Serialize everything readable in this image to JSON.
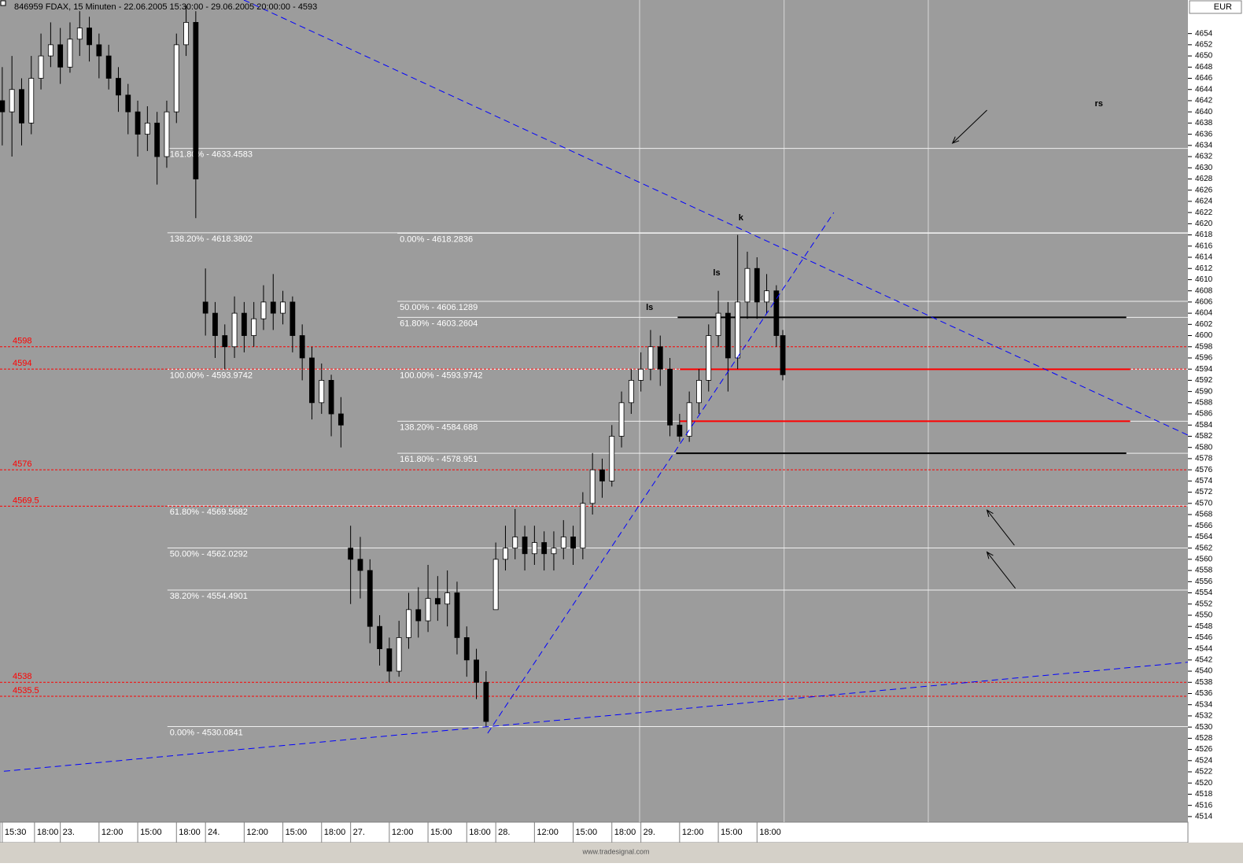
{
  "chart_data": {
    "type": "candlestick",
    "title": "846959  FDAX, 15 Minuten - 22.06.2005 15:30:00 - 29.06.2005 20:00:00 - 4593",
    "currency": "EUR",
    "footer": "www.tradesignal.com",
    "up_color": "#ffffff",
    "down_color": "#000000",
    "x": [
      0,
      3,
      6,
      9,
      12,
      15,
      18,
      21,
      24,
      27,
      30,
      33,
      36,
      39,
      42,
      45,
      48,
      51,
      54,
      57,
      60,
      63,
      66,
      69,
      72,
      75,
      78,
      81,
      84,
      87,
      90,
      93,
      96,
      99,
      102,
      105,
      108,
      111,
      114,
      117,
      120,
      123,
      126,
      129,
      132,
      135,
      138,
      141,
      144,
      147,
      150,
      153,
      156,
      159,
      162,
      165,
      168,
      171,
      174,
      177,
      180,
      183,
      186,
      189,
      192,
      195,
      198,
      201,
      204,
      207,
      210,
      213,
      216,
      219,
      222,
      225,
      228,
      231,
      234,
      237,
      240,
      242
    ],
    "open": [
      4642,
      4640,
      4644,
      4638,
      4646,
      4650,
      4652,
      4648,
      4653,
      4655,
      4652,
      4650,
      4646,
      4643,
      4640,
      4636,
      4638,
      4632,
      4640,
      4652,
      4656,
      4606,
      4604,
      4600,
      4598,
      4604,
      4600,
      4603,
      4606,
      4604,
      4606,
      4600,
      4596,
      4588,
      4592,
      4586,
      4562,
      4560,
      4558,
      4548,
      4544,
      4540,
      4546,
      4551,
      4549,
      4553,
      4552,
      4554,
      4546,
      4542,
      4538,
      4551,
      4560,
      4562,
      4564,
      4561,
      4563,
      4561,
      4562,
      4564,
      4562,
      4570,
      4576,
      4574,
      4582,
      4588,
      4592,
      4594,
      4598,
      4594,
      4584,
      4582,
      4588,
      4592,
      4600,
      4604,
      4596,
      4606,
      4612,
      4606,
      4608,
      4600
    ],
    "high": [
      4648,
      4650,
      4646,
      4650,
      4654,
      4656,
      4655,
      4656,
      4658,
      4657,
      4654,
      4652,
      4648,
      4645,
      4642,
      4641,
      4640,
      4642,
      4654,
      4659,
      4658,
      4612,
      4606,
      4602,
      4607,
      4606,
      4606,
      4609,
      4611,
      4608,
      4607,
      4602,
      4598,
      4595,
      4593,
      4589,
      4566,
      4564,
      4560,
      4550,
      4546,
      4549,
      4554,
      4555,
      4559,
      4557,
      4558,
      4556,
      4548,
      4544,
      4540,
      4563,
      4566,
      4569,
      4566,
      4566,
      4565,
      4565,
      4567,
      4566,
      4572,
      4579,
      4578,
      4584,
      4590,
      4594,
      4597,
      4601,
      4600,
      4596,
      4586,
      4590,
      4594,
      4602,
      4608,
      4606,
      4618,
      4615,
      4614,
      4611,
      4609,
      4601
    ],
    "low": [
      4634,
      4632,
      4634,
      4636,
      4644,
      4648,
      4645,
      4647,
      4650,
      4649,
      4646,
      4644,
      4640,
      4636,
      4632,
      4633,
      4627,
      4630,
      4638,
      4650,
      4621,
      4600,
      4596,
      4594,
      4596,
      4597,
      4598,
      4601,
      4601,
      4602,
      4597,
      4592,
      4585,
      4586,
      4582,
      4580,
      4552,
      4553,
      4545,
      4541,
      4538,
      4539,
      4544,
      4546,
      4547,
      4549,
      4548,
      4543,
      4539,
      4535,
      4530,
      4551,
      4558,
      4560,
      4558,
      4559,
      4558,
      4558,
      4560,
      4559,
      4560,
      4568,
      4571,
      4573,
      4580,
      4586,
      4590,
      4592,
      4591,
      4582,
      4581,
      4581,
      4586,
      4590,
      4598,
      4590,
      4594,
      4603,
      4603,
      4604,
      4598,
      4592
    ],
    "close": [
      4640,
      4644,
      4638,
      4646,
      4650,
      4652,
      4648,
      4653,
      4655,
      4652,
      4650,
      4646,
      4643,
      4640,
      4636,
      4638,
      4632,
      4640,
      4652,
      4656,
      4628,
      4604,
      4600,
      4598,
      4604,
      4600,
      4603,
      4606,
      4604,
      4606,
      4600,
      4596,
      4588,
      4592,
      4586,
      4584,
      4560,
      4558,
      4548,
      4544,
      4540,
      4546,
      4551,
      4549,
      4553,
      4552,
      4554,
      4546,
      4542,
      4538,
      4531,
      4560,
      4562,
      4564,
      4561,
      4563,
      4561,
      4562,
      4564,
      4562,
      4570,
      4576,
      4574,
      4582,
      4588,
      4592,
      4594,
      4598,
      4594,
      4584,
      4582,
      4588,
      4592,
      4600,
      4604,
      4596,
      4606,
      4612,
      4606,
      4608,
      4600,
      4593
    ],
    "xlim": [
      -0.7,
      367.6
    ],
    "ylim": [
      4513,
      4660
    ],
    "yticks": [
      4514,
      4516,
      4518,
      4520,
      4522,
      4524,
      4526,
      4528,
      4530,
      4532,
      4534,
      4536,
      4538,
      4540,
      4542,
      4544,
      4546,
      4548,
      4550,
      4552,
      4554,
      4556,
      4558,
      4560,
      4562,
      4564,
      4566,
      4568,
      4570,
      4572,
      4574,
      4576,
      4578,
      4580,
      4582,
      4584,
      4586,
      4588,
      4590,
      4592,
      4594,
      4596,
      4598,
      4600,
      4602,
      4604,
      4606,
      4608,
      4610,
      4612,
      4614,
      4616,
      4618,
      4620,
      4622,
      4624,
      4626,
      4628,
      4630,
      4632,
      4634,
      4636,
      4638,
      4640,
      4642,
      4644,
      4646,
      4648,
      4650,
      4652,
      4654
    ],
    "xticks": [
      {
        "value": 0,
        "label": "15:30"
      },
      {
        "value": 10,
        "label": "18:00"
      },
      {
        "value": 18,
        "label": "23."
      },
      {
        "value": 30,
        "label": "12:00"
      },
      {
        "value": 42,
        "label": "15:00"
      },
      {
        "value": 54,
        "label": "18:00"
      },
      {
        "value": 63,
        "label": "24."
      },
      {
        "value": 75,
        "label": "12:00"
      },
      {
        "value": 87,
        "label": "15:00"
      },
      {
        "value": 99,
        "label": "18:00"
      },
      {
        "value": 108,
        "label": "27."
      },
      {
        "value": 120,
        "label": "12:00"
      },
      {
        "value": 132,
        "label": "15:00"
      },
      {
        "value": 144,
        "label": "18:00"
      },
      {
        "value": 153,
        "label": "28."
      },
      {
        "value": 165,
        "label": "12:00"
      },
      {
        "value": 177,
        "label": "15:00"
      },
      {
        "value": 189,
        "label": "18:00"
      },
      {
        "value": 198,
        "label": "29."
      },
      {
        "value": 210,
        "label": "12:00"
      },
      {
        "value": 222,
        "label": "15:00"
      },
      {
        "value": 234,
        "label": "18:00"
      }
    ],
    "fib_levels": [
      {
        "value": 4633.4583,
        "label": "161.80% - 4633.4583",
        "start": 51.2
      },
      {
        "value": 4618.3802,
        "label": "138.20% - 4618.3802",
        "start": 51.2
      },
      {
        "value": 4593.9742,
        "label": "100.00% - 4593.9742",
        "start": 51.2
      },
      {
        "value": 4569.5682,
        "label": "61.80% - 4569.5682",
        "start": 51.2
      },
      {
        "value": 4562.0292,
        "label": "50.00% - 4562.0292",
        "start": 51.2
      },
      {
        "value": 4554.4901,
        "label": "38.20% - 4554.4901",
        "start": 51.2
      },
      {
        "value": 4530.0841,
        "label": "0.00% - 4530.0841",
        "start": 51.2
      },
      {
        "value": 4618.2836,
        "label": "0.00% - 4618.2836",
        "start": 122.5
      },
      {
        "value": 4606.1289,
        "label": "50.00% - 4606.1289",
        "start": 122.5
      },
      {
        "value": 4603.2604,
        "label": "61.80% - 4603.2604",
        "start": 122.5
      },
      {
        "value": 4593.9742,
        "label": "100.00% - 4593.9742",
        "start": 122.5
      },
      {
        "value": 4584.688,
        "label": "138.20% - 4584.688",
        "start": 122.5
      },
      {
        "value": 4578.951,
        "label": "161.80% - 4578.951",
        "start": 122.5
      }
    ],
    "levels": {
      "color": "#ff0000",
      "values": [
        4598,
        4594,
        4576,
        4569.5,
        4538,
        4535.5
      ]
    },
    "segments": [
      {
        "value": 4603.26,
        "start": 209.4,
        "end": 348.5,
        "color": "#000000"
      },
      {
        "value": 4593.97,
        "start": 210.1,
        "end": 349.7,
        "color": "#ff0000"
      },
      {
        "value": 4584.69,
        "start": 210.1,
        "end": 349.7,
        "color": "#ff0000"
      },
      {
        "value": 4578.95,
        "start": 208.9,
        "end": 348.5,
        "color": "#000000"
      }
    ],
    "vlines": [
      197.6,
      242.4,
      287.1
    ],
    "trendlines": [
      {
        "x": [
          74.9,
          367.6
        ],
        "y": [
          4660,
          4582.2
        ]
      },
      {
        "x": [
          0.5,
          367.6
        ],
        "y": [
          4522.1,
          4541.6
        ]
      },
      {
        "x": [
          150.5,
          257.8
        ],
        "y": [
          4528.9,
          4622.0
        ]
      }
    ],
    "arrows": [
      {
        "x": [
          305.3,
          294.6
        ],
        "y": [
          4640.3,
          4634.4
        ]
      },
      {
        "x": [
          313.8,
          305.3
        ],
        "y": [
          4562.5,
          4568.8
        ]
      },
      {
        "x": [
          314.1,
          305.3
        ],
        "y": [
          4554.8,
          4561.3
        ]
      }
    ],
    "annotations": [
      {
        "text": "ls",
        "x": 200.7,
        "y": 4605
      },
      {
        "text": "ls",
        "x": 221.5,
        "y": 4611.2
      },
      {
        "text": "k",
        "x": 229,
        "y": 4621
      },
      {
        "text": "rs",
        "x": 340,
        "y": 4641.4
      }
    ]
  }
}
